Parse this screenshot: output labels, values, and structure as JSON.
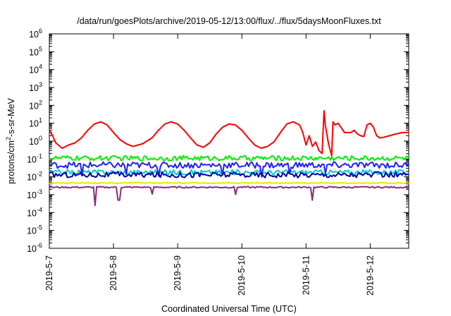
{
  "chart_data": {
    "type": "line",
    "title": "/data/run/goesPlots/archive/2019-05-12/13:00/flux/../flux/5daysMoonFluxes.txt",
    "xlabel": "Coordinated Universal Time (UTC)",
    "ylabel": {
      "prefix": "protons/cm",
      "sup": "2",
      "suffix": "-s-sr-MeV"
    },
    "yscale": "log",
    "ylim_exponents": [
      -6,
      6
    ],
    "yticks": [
      {
        "base": "10",
        "exp": "6"
      },
      {
        "base": "10",
        "exp": "5"
      },
      {
        "base": "10",
        "exp": "4"
      },
      {
        "base": "10",
        "exp": "3"
      },
      {
        "base": "10",
        "exp": "2"
      },
      {
        "base": "10",
        "exp": "1"
      },
      {
        "base": "10",
        "exp": "0"
      },
      {
        "base": "10",
        "exp": "-1"
      },
      {
        "base": "10",
        "exp": "-2"
      },
      {
        "base": "10",
        "exp": "-3"
      },
      {
        "base": "10",
        "exp": "-4"
      },
      {
        "base": "10",
        "exp": "-5"
      },
      {
        "base": "10",
        "exp": "-6"
      }
    ],
    "xlim_days": [
      0,
      5.6
    ],
    "xticks": [
      {
        "label": "2019-5-7",
        "day": 0
      },
      {
        "label": "2019-5-8",
        "day": 1
      },
      {
        "label": "2019-5-9",
        "day": 2
      },
      {
        "label": "2019-5-10",
        "day": 3
      },
      {
        "label": "2019-5-11",
        "day": 4
      },
      {
        "label": "2019-5-12",
        "day": 5
      }
    ],
    "grid": false,
    "legend": "none",
    "series": [
      {
        "key": "red",
        "color": "#ff0000",
        "points": [
          [
            0,
            4
          ],
          [
            0.05,
            2
          ],
          [
            0.1,
            0.8
          ],
          [
            0.2,
            0.4
          ],
          [
            0.3,
            0.6
          ],
          [
            0.4,
            0.8
          ],
          [
            0.5,
            1.5
          ],
          [
            0.6,
            4
          ],
          [
            0.7,
            9
          ],
          [
            0.8,
            12
          ],
          [
            0.9,
            8
          ],
          [
            1.0,
            3
          ],
          [
            1.1,
            1.2
          ],
          [
            1.2,
            0.7
          ],
          [
            1.3,
            0.5
          ],
          [
            1.45,
            0.7
          ],
          [
            1.6,
            1.5
          ],
          [
            1.7,
            4
          ],
          [
            1.8,
            9
          ],
          [
            1.9,
            12
          ],
          [
            2.0,
            9
          ],
          [
            2.1,
            4
          ],
          [
            2.2,
            1.5
          ],
          [
            2.3,
            0.6
          ],
          [
            2.4,
            0.45
          ],
          [
            2.5,
            0.8
          ],
          [
            2.6,
            2.5
          ],
          [
            2.7,
            6
          ],
          [
            2.8,
            9
          ],
          [
            2.9,
            8
          ],
          [
            3.0,
            4
          ],
          [
            3.1,
            1.5
          ],
          [
            3.2,
            0.6
          ],
          [
            3.3,
            0.4
          ],
          [
            3.4,
            0.5
          ],
          [
            3.5,
            0.9
          ],
          [
            3.6,
            3
          ],
          [
            3.7,
            9
          ],
          [
            3.8,
            12
          ],
          [
            3.9,
            8
          ],
          [
            3.95,
            3
          ],
          [
            4.0,
            0.6
          ],
          [
            4.05,
            2
          ],
          [
            4.1,
            0.5
          ],
          [
            4.15,
            0.9
          ],
          [
            4.2,
            0.3
          ],
          [
            4.25,
            0.2
          ],
          [
            4.28,
            50
          ],
          [
            4.3,
            8
          ],
          [
            4.35,
            0.7
          ],
          [
            4.4,
            0.15
          ],
          [
            4.42,
            12
          ],
          [
            4.45,
            8
          ],
          [
            4.5,
            10
          ],
          [
            4.6,
            3
          ],
          [
            4.7,
            3
          ],
          [
            4.75,
            4
          ],
          [
            4.8,
            2.5
          ],
          [
            4.85,
            2
          ],
          [
            4.9,
            1.8
          ],
          [
            4.95,
            8
          ],
          [
            5.0,
            10
          ],
          [
            5.05,
            6
          ],
          [
            5.1,
            2
          ],
          [
            5.15,
            1.5
          ],
          [
            5.2,
            1.6
          ],
          [
            5.3,
            2
          ],
          [
            5.4,
            2.5
          ],
          [
            5.5,
            3
          ],
          [
            5.6,
            3
          ]
        ]
      },
      {
        "key": "green",
        "color": "#00ee00",
        "level": 0.11,
        "amp": 0.28,
        "dips": []
      },
      {
        "key": "cyan",
        "color": "#00c8d8",
        "level": 0.018,
        "amp": 0.28,
        "dips": []
      },
      {
        "key": "blue",
        "color": "#2020ff",
        "level": 0.045,
        "amp": 0.35,
        "dips": [
          [
            0.5,
            0.6
          ],
          [
            1.2,
            0.5
          ],
          [
            1.7,
            0.5
          ],
          [
            2.7,
            0.4
          ],
          [
            3.3,
            0.5
          ],
          [
            3.75,
            0.5
          ],
          [
            4.3,
            0.6
          ]
        ]
      },
      {
        "key": "darkblue",
        "color": "#0000a0",
        "level": 0.013,
        "amp": 0.32,
        "dips": []
      },
      {
        "key": "yellow",
        "color": "#e8e800",
        "level": 0.0045,
        "amp": 0.05,
        "dips": []
      },
      {
        "key": "purple",
        "color": "#8b2b78",
        "level": 0.0026,
        "amp": 0.08,
        "dips": [
          [
            0.72,
            1.0
          ],
          [
            1.08,
            0.7
          ],
          [
            1.6,
            0.4
          ],
          [
            2.9,
            0.4
          ],
          [
            4.1,
            0.7
          ]
        ]
      }
    ]
  }
}
